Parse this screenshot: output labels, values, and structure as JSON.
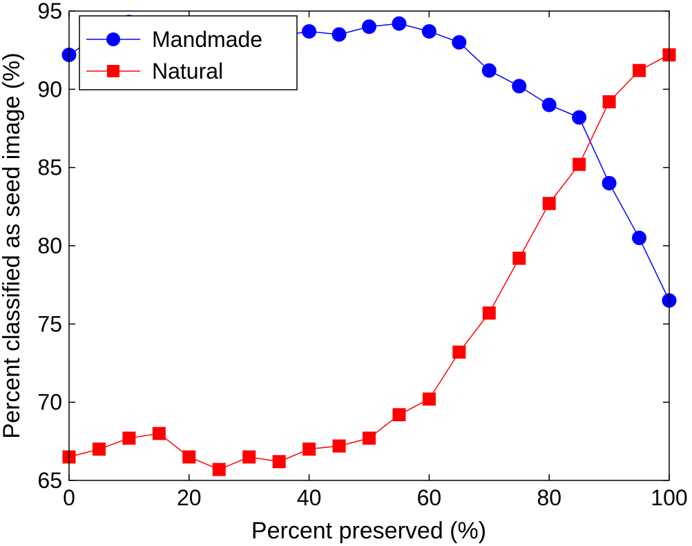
{
  "chart_data": {
    "type": "line",
    "title": "",
    "xlabel": "Percent preserved (%)",
    "ylabel": "Percent classified as seed image (%)",
    "xlim": [
      0,
      100
    ],
    "ylim": [
      65,
      95
    ],
    "xticks": [
      0,
      20,
      40,
      60,
      80,
      100
    ],
    "yticks": [
      65,
      70,
      75,
      80,
      85,
      90,
      95
    ],
    "grid": false,
    "legend_position": "top-left",
    "x": [
      0,
      5,
      10,
      15,
      20,
      25,
      30,
      35,
      40,
      45,
      50,
      55,
      60,
      65,
      70,
      75,
      80,
      85,
      90,
      95,
      100
    ],
    "series": [
      {
        "name": "Mandmade",
        "color": "#0000ff",
        "marker": "circle",
        "values": [
          92.2,
          93.5,
          94.3,
          93.9,
          93.6,
          93.3,
          93.6,
          93.4,
          93.7,
          93.5,
          94.0,
          94.2,
          93.7,
          93.0,
          91.2,
          90.2,
          89.0,
          88.2,
          84.0,
          80.5,
          76.5
        ]
      },
      {
        "name": "Natural",
        "color": "#ff0000",
        "marker": "square",
        "values": [
          66.5,
          67.0,
          67.7,
          68.0,
          66.5,
          65.7,
          66.5,
          66.2,
          67.0,
          67.2,
          67.7,
          69.2,
          70.2,
          73.2,
          75.7,
          79.2,
          82.7,
          85.2,
          89.2,
          91.2,
          92.2
        ]
      }
    ]
  }
}
